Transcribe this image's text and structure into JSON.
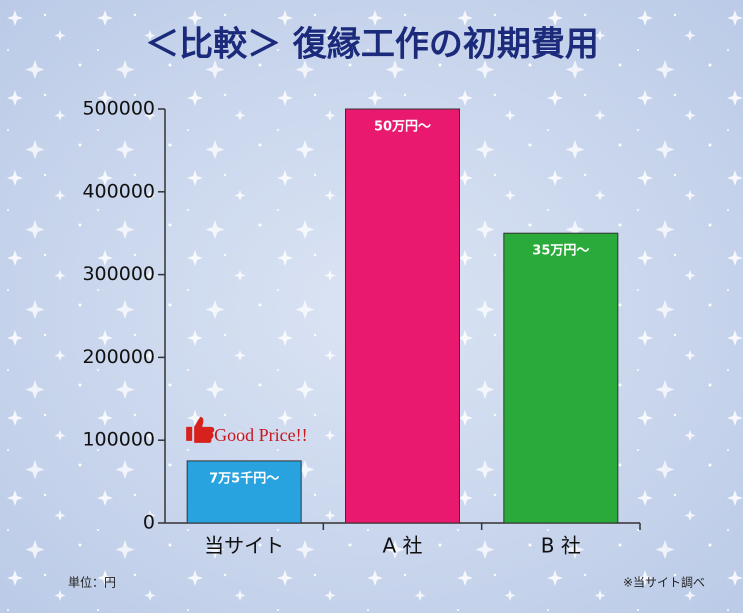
{
  "chart_data": {
    "type": "bar",
    "title": "＜比較＞ 復縁工作の初期費用",
    "categories": [
      "当サイト",
      "A 社",
      "B 社"
    ],
    "values": [
      75000,
      500000,
      350000
    ],
    "value_labels": [
      "7万5千円〜",
      "50万円〜",
      "35万円〜"
    ],
    "colors": [
      "#29a3e0",
      "#e8196f",
      "#2aaa3a"
    ],
    "ylim": [
      0,
      500000
    ],
    "yticks": [
      0,
      100000,
      200000,
      300000,
      400000,
      500000
    ],
    "annotation": "Good Price!!",
    "unit_note": "単位：円",
    "source": "※当サイト調べ"
  }
}
